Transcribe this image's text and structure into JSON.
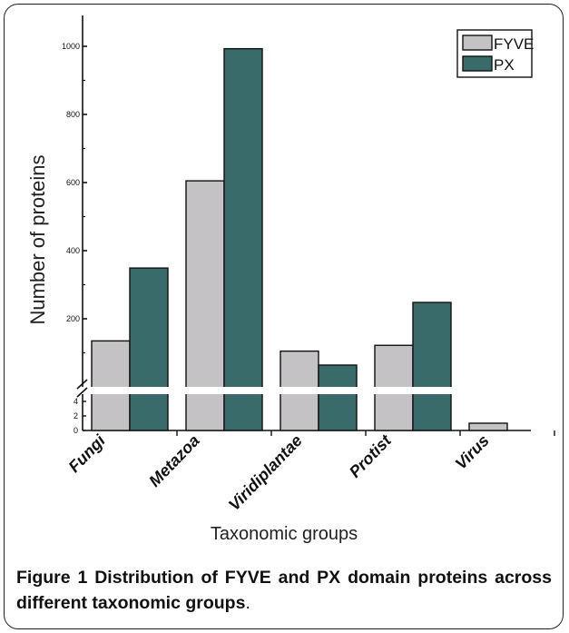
{
  "chart_data": {
    "type": "bar",
    "categories": [
      "Fungi",
      "Metazoa",
      "Viridiplantae",
      "Protist",
      "Virus"
    ],
    "series": [
      {
        "name": "FYVE",
        "values": [
          135,
          605,
          105,
          122,
          1
        ],
        "color": "#c4c2c5"
      },
      {
        "name": "PX",
        "values": [
          349,
          993,
          64,
          248,
          0
        ],
        "color": "#386b6a"
      }
    ],
    "xlabel": "Taxonomic groups",
    "ylabel": "Number of proteins",
    "ylim_upper": [
      0,
      1080
    ],
    "ylim_lower": [
      0,
      5
    ],
    "yticks_upper": [
      200,
      400,
      600,
      800,
      1000
    ],
    "yticks_lower": [
      0,
      2,
      4
    ],
    "axis_break": true,
    "legend_position": "top-right",
    "grid": false
  },
  "caption": {
    "label": "Figure 1",
    "title": "Distribution of FYVE and PX domain proteins across different taxonomic groups",
    "end": "."
  }
}
